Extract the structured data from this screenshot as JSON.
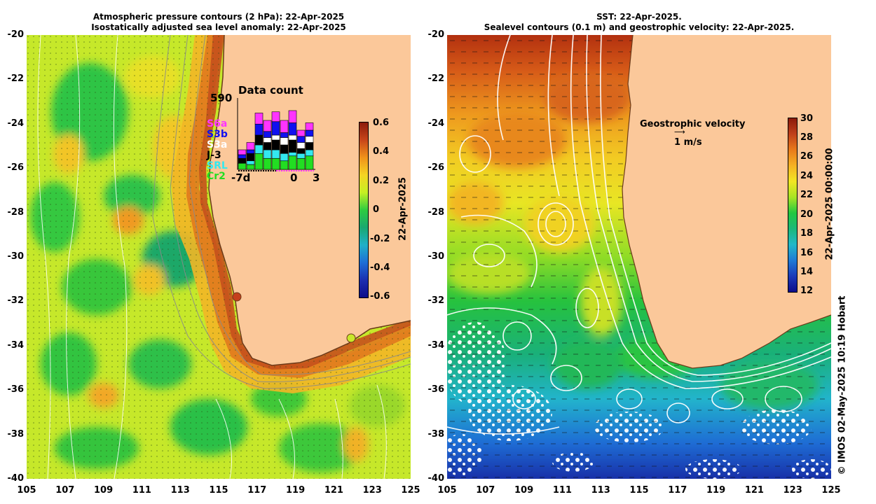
{
  "left": {
    "title_line1": "Atmospheric pressure contours (2 hPa): 22-Apr-2025",
    "title_line2": "Isostatically adjusted sea level anomaly: 22-Apr-2025",
    "colorbar_label": "22-Apr-2025",
    "colorbar_ticks": [
      "0.6",
      "0.4",
      "0.2",
      "0",
      "-0.2",
      "-0.4",
      "-0.6"
    ],
    "colorbar_colors": [
      "#8b1a0a",
      "#c8451a",
      "#f0921a",
      "#f5d423",
      "#c6f023",
      "#2ecc40",
      "#1aa870",
      "#1fb0c8",
      "#1e6fd6",
      "#1c2fb0",
      "#0d0d8a"
    ],
    "data_count": {
      "title": "Data count",
      "max": "590",
      "x_ticks": [
        "-7d",
        "0",
        "3"
      ],
      "missions": [
        {
          "name": "S6a",
          "color": "#ff33ff"
        },
        {
          "name": "S3b",
          "color": "#1010f0"
        },
        {
          "name": "S3a",
          "color": "#ffffff"
        },
        {
          "name": "J-3",
          "color": "#000000"
        },
        {
          "name": "SRL",
          "color": "#33e8f0"
        },
        {
          "name": "Cr2",
          "color": "#22dd22"
        }
      ],
      "bars": [
        [
          4,
          3,
          0,
          4,
          0,
          5
        ],
        [
          6,
          3,
          0,
          6,
          3,
          4
        ],
        [
          9,
          9,
          0,
          8,
          7,
          13
        ],
        [
          9,
          5,
          4,
          6,
          7,
          9
        ],
        [
          8,
          11,
          4,
          8,
          7,
          9
        ],
        [
          10,
          4,
          6,
          7,
          6,
          7
        ],
        [
          10,
          10,
          4,
          10,
          3,
          11
        ],
        [
          5,
          5,
          5,
          4,
          4,
          9
        ],
        [
          6,
          5,
          5,
          6,
          5,
          11
        ]
      ]
    }
  },
  "right": {
    "title_line1": "SST: 22-Apr-2025.",
    "title_line2": "Sealevel contours (0.1 m) and geostrophic velocity: 22-Apr-2025.",
    "geo_label": "Geostrophic velocity",
    "geo_scale": "1 m/s",
    "colorbar_label": "22-Apr-2025 00:00:00",
    "colorbar_ticks": [
      "30",
      "28",
      "26",
      "24",
      "22",
      "20",
      "18",
      "16",
      "14",
      "12"
    ],
    "colorbar_colors": [
      "#8b1a0a",
      "#c0401a",
      "#e87a1a",
      "#f5b223",
      "#f2e623",
      "#a8e423",
      "#22c840",
      "#1ab87a",
      "#22b8c8",
      "#1e7ad6",
      "#1c3ab8",
      "#0d0d8a"
    ]
  },
  "axes": {
    "y_ticks": [
      "-20",
      "-22",
      "-24",
      "-26",
      "-28",
      "-30",
      "-32",
      "-34",
      "-36",
      "-38",
      "-40"
    ],
    "x_ticks": [
      "105",
      "107",
      "109",
      "111",
      "113",
      "115",
      "117",
      "119",
      "121",
      "123",
      "125"
    ]
  },
  "copyright": "© IMOS 02-May-2025 10:19 Hobart",
  "colors": {
    "land": "#fbc89a",
    "coast": "#6b3a1a"
  }
}
